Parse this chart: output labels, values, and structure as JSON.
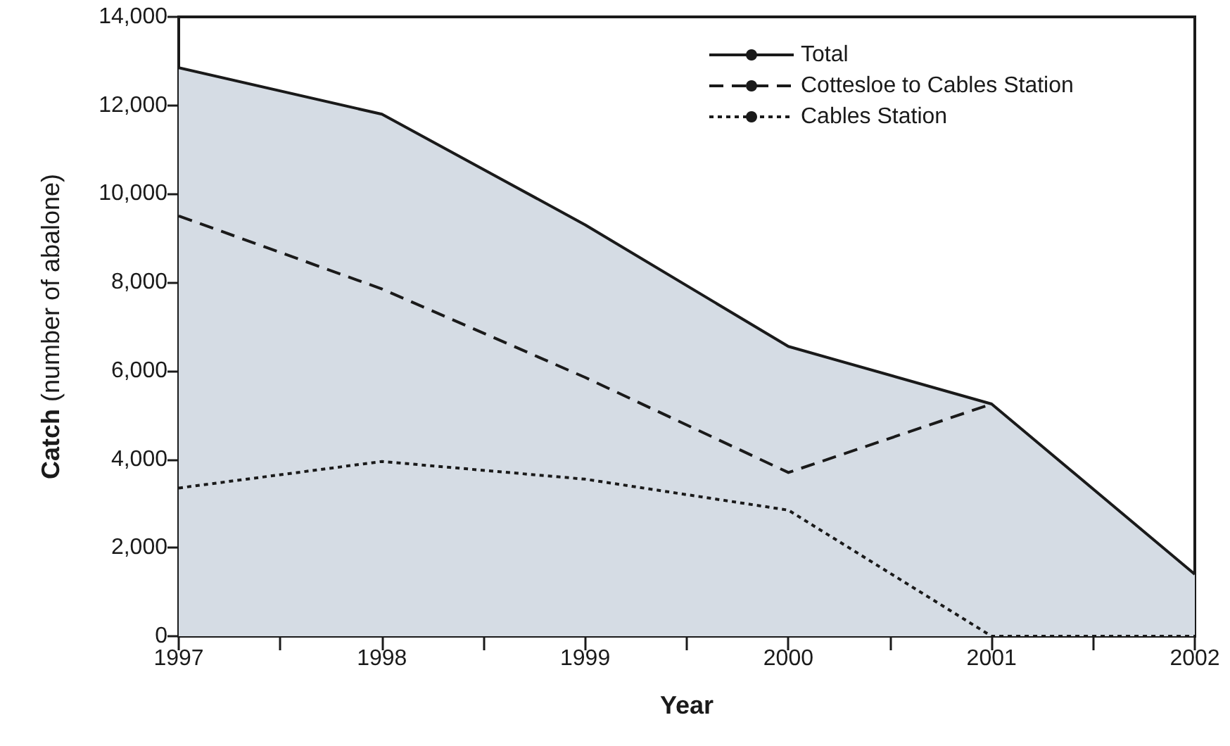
{
  "chart_data": {
    "type": "line",
    "xlabel": "Year",
    "ylabel": "Catch (number of abalone)",
    "x": [
      1997,
      1998,
      1999,
      2000,
      2001,
      2002
    ],
    "series": [
      {
        "name": "Total",
        "type": "area",
        "color": "#1a1a1a",
        "line_style": "solid",
        "values": [
          12850,
          11800,
          9300,
          6550,
          5250,
          1400
        ]
      },
      {
        "name": "Cottesloe to Cables Station",
        "color": "#1a1a1a",
        "line_style": "dashed",
        "values": [
          9500,
          7850,
          5850,
          3700,
          5250,
          null
        ]
      },
      {
        "name": "Cables Station",
        "color": "#1a1a1a",
        "line_style": "dotted",
        "values": [
          3350,
          3950,
          3550,
          2850,
          0,
          0
        ]
      }
    ],
    "xlim": [
      1997,
      2002
    ],
    "xticks": [
      1997,
      {
        "value": 1997.5,
        "label": null
      },
      1998,
      {
        "value": 1998.5,
        "label": null
      },
      1999,
      {
        "value": 1999.5,
        "label": null
      },
      2000,
      {
        "value": 2000.5,
        "label": null
      },
      2001,
      {
        "value": 2001.5,
        "label": null
      },
      2002
    ],
    "ylim": [
      0,
      14000
    ],
    "yticks": [
      {
        "value": 0,
        "label": "0"
      },
      {
        "value": 2000,
        "label": "2,000"
      },
      {
        "value": 4000,
        "label": "4,000"
      },
      {
        "value": 6000,
        "label": "6,000"
      },
      {
        "value": 8000,
        "label": "8,000"
      },
      {
        "value": 10000,
        "label": "10,000"
      },
      {
        "value": 12000,
        "label": "12,000"
      },
      {
        "value": 14000,
        "label": "14,000"
      }
    ],
    "grid": false,
    "legend": "top right",
    "marker": "none"
  }
}
